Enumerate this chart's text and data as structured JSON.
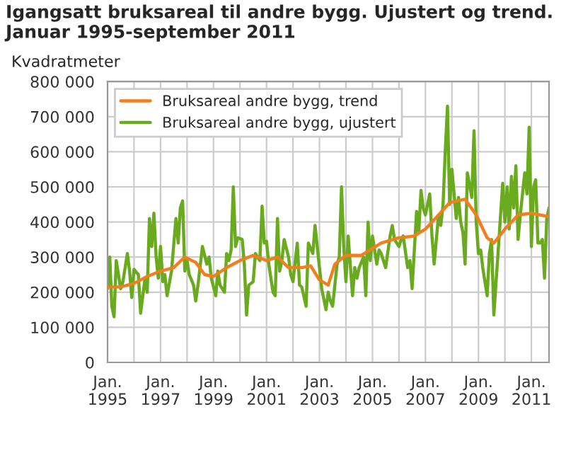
{
  "chart_data": {
    "type": "line",
    "title": "Igangsatt bruksareal til andre bygg. Ujustert og trend. Januar 1995-september 2011",
    "ylabel": "Kvadratmeter",
    "xlim": [
      "1995-01",
      "2011-09"
    ],
    "ylim": [
      0,
      800000
    ],
    "xticks": [
      {
        "value": "1995-01",
        "label": "Jan.\n1995"
      },
      {
        "value": "1996-01",
        "label": null
      },
      {
        "value": "1997-01",
        "label": "Jan.\n1997"
      },
      {
        "value": "1998-01",
        "label": null
      },
      {
        "value": "1999-01",
        "label": "Jan.\n1999"
      },
      {
        "value": "2000-01",
        "label": null
      },
      {
        "value": "2001-01",
        "label": "Jan.\n2001"
      },
      {
        "value": "2002-01",
        "label": null
      },
      {
        "value": "2003-01",
        "label": "Jan.\n2003"
      },
      {
        "value": "2004-01",
        "label": null
      },
      {
        "value": "2005-01",
        "label": "Jan.\n2005"
      },
      {
        "value": "2006-01",
        "label": null
      },
      {
        "value": "2007-01",
        "label": "Jan.\n2007"
      },
      {
        "value": "2008-01",
        "label": null
      },
      {
        "value": "2009-01",
        "label": "Jan.\n2009"
      },
      {
        "value": "2010-01",
        "label": null
      },
      {
        "value": "2011-01",
        "label": "Jan.\n2011"
      }
    ],
    "yticks": [
      0,
      {
        "value": 100000,
        "label": "100 000"
      },
      {
        "value": 200000,
        "label": "200 000"
      },
      {
        "value": 300000,
        "label": "300 000"
      },
      {
        "value": 400000,
        "label": "400 000"
      },
      {
        "value": 500000,
        "label": "500 000"
      },
      {
        "value": 600000,
        "label": "600 000"
      },
      {
        "value": 700000,
        "label": "700 000"
      },
      {
        "value": 800000,
        "label": "800 000"
      }
    ],
    "grid": true,
    "legend": "top left",
    "marker": "none",
    "line_style": "solid",
    "series": [
      {
        "name": "Bruksareal andre bygg, trend",
        "color": "#f07f1f",
        "x": [
          "1995-01",
          "1995-07",
          "1996-01",
          "1996-07",
          "1997-01",
          "1997-07",
          "1997-12",
          "1998-05",
          "1998-09",
          "1999-01",
          "1999-07",
          "2000-01",
          "2000-07",
          "2001-01",
          "2001-06",
          "2001-11",
          "2002-05",
          "2002-09",
          "2003-01",
          "2003-05",
          "2003-08",
          "2004-01",
          "2004-08",
          "2005-05",
          "2006-01",
          "2006-08",
          "2007-01",
          "2007-07",
          "2007-12",
          "2008-07",
          "2008-12",
          "2009-05",
          "2009-08",
          "2010-01",
          "2010-07",
          "2011-01",
          "2011-09"
        ],
        "values": [
          215000,
          215000,
          225000,
          245000,
          260000,
          270000,
          300000,
          285000,
          250000,
          245000,
          270000,
          290000,
          305000,
          290000,
          300000,
          270000,
          270000,
          275000,
          235000,
          220000,
          280000,
          305000,
          305000,
          340000,
          355000,
          360000,
          380000,
          420000,
          455000,
          465000,
          420000,
          355000,
          340000,
          380000,
          420000,
          425000,
          415000
        ]
      },
      {
        "name": "Bruksareal andre bygg, ujustert",
        "color": "#6aaa1e",
        "x": [
          "1995-01",
          "1995-02",
          "1995-03",
          "1995-04",
          "1995-05",
          "1995-07",
          "1995-08",
          "1995-10",
          "1995-11",
          "1995-12",
          "1996-01",
          "1996-03",
          "1996-04",
          "1996-06",
          "1996-07",
          "1996-08",
          "1996-09",
          "1996-10",
          "1996-11",
          "1996-12",
          "1997-01",
          "1997-02",
          "1997-03",
          "1997-04",
          "1997-06",
          "1997-08",
          "1997-09",
          "1997-10",
          "1997-11",
          "1997-12",
          "1998-01",
          "1998-02",
          "1998-04",
          "1998-05",
          "1998-06",
          "1998-08",
          "1998-10",
          "1998-11",
          "1998-12",
          "1999-02",
          "1999-03",
          "1999-04",
          "1999-06",
          "1999-07",
          "1999-08",
          "1999-09",
          "1999-10",
          "1999-11",
          "1999-12",
          "2000-02",
          "2000-03",
          "2000-04",
          "2000-05",
          "2000-07",
          "2000-08",
          "2000-10",
          "2000-11",
          "2000-12",
          "2001-01",
          "2001-02",
          "2001-04",
          "2001-05",
          "2001-06",
          "2001-07",
          "2001-08",
          "2001-09",
          "2001-11",
          "2001-12",
          "2002-01",
          "2002-03",
          "2002-04",
          "2002-05",
          "2002-07",
          "2002-08",
          "2002-10",
          "2002-11",
          "2003-01",
          "2003-02",
          "2003-04",
          "2003-05",
          "2003-06",
          "2003-07",
          "2003-09",
          "2003-10",
          "2003-11",
          "2003-12",
          "2004-01",
          "2004-02",
          "2004-04",
          "2004-05",
          "2004-06",
          "2004-07",
          "2004-09",
          "2004-10",
          "2004-11",
          "2004-12",
          "2005-01",
          "2005-03",
          "2005-04",
          "2005-05",
          "2005-07",
          "2005-09",
          "2005-10",
          "2005-11",
          "2006-01",
          "2006-02",
          "2006-03",
          "2006-05",
          "2006-06",
          "2006-07",
          "2006-09",
          "2006-10",
          "2006-11",
          "2006-12",
          "2007-01",
          "2007-03",
          "2007-04",
          "2007-05",
          "2007-07",
          "2007-08",
          "2007-09",
          "2007-10",
          "2007-11",
          "2007-12",
          "2008-01",
          "2008-03",
          "2008-04",
          "2008-05",
          "2008-06",
          "2008-07",
          "2008-08",
          "2008-10",
          "2008-11",
          "2008-12",
          "2009-01",
          "2009-02",
          "2009-03",
          "2009-05",
          "2009-06",
          "2009-07",
          "2009-08",
          "2009-09",
          "2009-10",
          "2009-12",
          "2010-01",
          "2010-02",
          "2010-03",
          "2010-04",
          "2010-05",
          "2010-06",
          "2010-07",
          "2010-08",
          "2010-10",
          "2010-11",
          "2010-12",
          "2011-01",
          "2011-02",
          "2011-03",
          "2011-04",
          "2011-05",
          "2011-06",
          "2011-07",
          "2011-08",
          "2011-09"
        ],
        "values": [
          210000,
          300000,
          160000,
          130000,
          290000,
          210000,
          230000,
          310000,
          260000,
          185000,
          265000,
          250000,
          140000,
          240000,
          200000,
          410000,
          330000,
          425000,
          300000,
          240000,
          330000,
          230000,
          250000,
          190000,
          260000,
          410000,
          340000,
          440000,
          460000,
          260000,
          290000,
          250000,
          220000,
          175000,
          220000,
          330000,
          280000,
          300000,
          240000,
          190000,
          260000,
          220000,
          200000,
          310000,
          290000,
          320000,
          500000,
          330000,
          355000,
          350000,
          280000,
          135000,
          220000,
          230000,
          310000,
          290000,
          445000,
          340000,
          345000,
          280000,
          200000,
          190000,
          410000,
          260000,
          290000,
          350000,
          300000,
          250000,
          230000,
          340000,
          220000,
          215000,
          160000,
          340000,
          310000,
          390000,
          270000,
          210000,
          150000,
          200000,
          175000,
          160000,
          280000,
          300000,
          500000,
          330000,
          230000,
          360000,
          190000,
          270000,
          240000,
          270000,
          300000,
          190000,
          400000,
          290000,
          360000,
          280000,
          320000,
          310000,
          270000,
          360000,
          390000,
          350000,
          330000,
          350000,
          360000,
          270000,
          290000,
          210000,
          430000,
          370000,
          490000,
          440000,
          420000,
          480000,
          360000,
          280000,
          420000,
          390000,
          450000,
          600000,
          730000,
          450000,
          550000,
          410000,
          470000,
          400000,
          370000,
          280000,
          540000,
          470000,
          660000,
          400000,
          310000,
          320000,
          270000,
          190000,
          310000,
          350000,
          135000,
          230000,
          320000,
          510000,
          400000,
          500000,
          380000,
          530000,
          440000,
          560000,
          350000,
          420000,
          540000,
          480000,
          670000,
          330000,
          500000,
          520000,
          340000,
          340000,
          350000,
          240000,
          410000,
          440000
        ]
      }
    ]
  }
}
